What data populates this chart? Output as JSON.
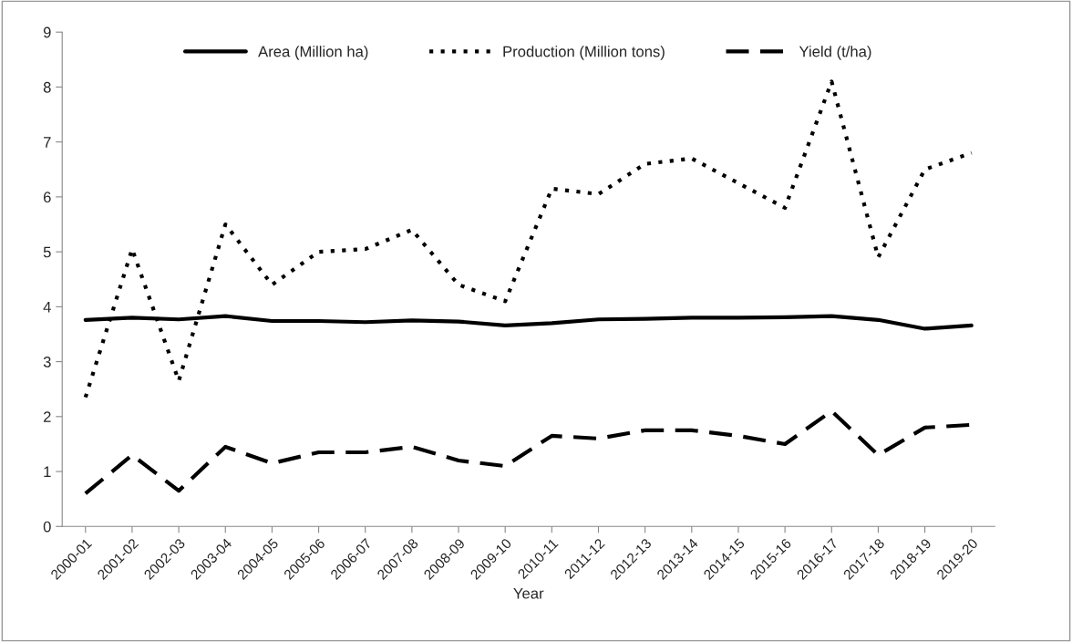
{
  "chart_data": {
    "type": "line",
    "xlabel": "Year",
    "categories": [
      "2000-01",
      "2001-02",
      "2002-03",
      "2003-04",
      "2004-05",
      "2005-06",
      "2006-07",
      "2007-08",
      "2008-09",
      "2009-10",
      "2010-11",
      "2011-12",
      "2012-13",
      "2013-14",
      "2014-15",
      "2015-16",
      "2016-17",
      "2017-18",
      "2018-19",
      "2019-20"
    ],
    "series": [
      {
        "name": "Area (Million ha)",
        "color": "#000000",
        "line_style": "solid",
        "values": [
          3.76,
          3.8,
          3.77,
          3.83,
          3.74,
          3.74,
          3.72,
          3.75,
          3.73,
          3.66,
          3.7,
          3.77,
          3.78,
          3.8,
          3.8,
          3.81,
          3.83,
          3.76,
          3.6,
          3.66
        ]
      },
      {
        "name": "Production (Million tons)",
        "color": "#000000",
        "line_style": "dotted",
        "values": [
          2.35,
          5.05,
          2.65,
          5.5,
          4.4,
          5.0,
          5.05,
          5.4,
          4.4,
          4.1,
          6.15,
          6.05,
          6.6,
          6.7,
          6.25,
          5.8,
          8.1,
          4.9,
          6.5,
          6.8
        ]
      },
      {
        "name": "Yield (t/ha)",
        "color": "#000000",
        "line_style": "dashed",
        "values": [
          0.6,
          1.3,
          0.65,
          1.45,
          1.15,
          1.35,
          1.35,
          1.45,
          1.2,
          1.1,
          1.65,
          1.6,
          1.75,
          1.75,
          1.65,
          1.5,
          2.1,
          1.3,
          1.8,
          1.85
        ]
      }
    ],
    "ylim": [
      0,
      9
    ],
    "yticks": [
      0,
      1,
      2,
      3,
      4,
      5,
      6,
      7,
      8,
      9
    ],
    "grid": false,
    "legend": "top",
    "marker": "none"
  }
}
